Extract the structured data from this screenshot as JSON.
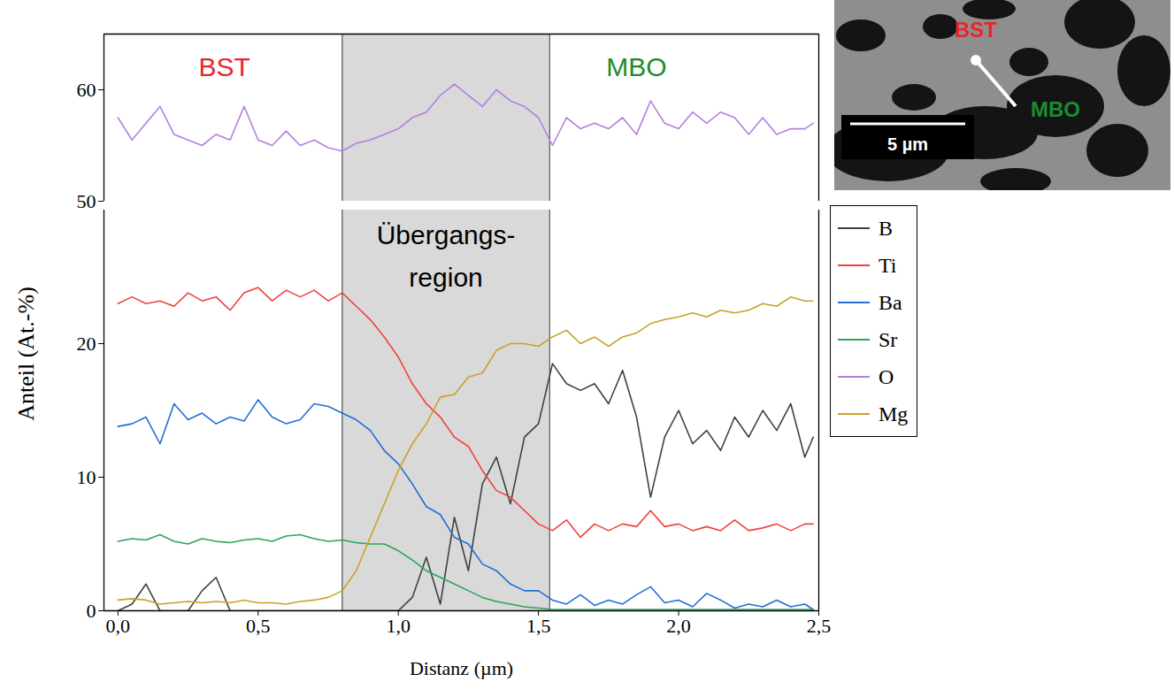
{
  "chart_data": {
    "type": "line",
    "x_label": "Distanz (µm)",
    "y_label": "Anteil (At.-%)",
    "xlim": [
      -0.05,
      2.5
    ],
    "xticks": [
      {
        "value": 0,
        "label": "0,0"
      },
      {
        "value": 0.5,
        "label": "0,5"
      },
      {
        "value": 1,
        "label": "1,0"
      },
      {
        "value": 1.5,
        "label": "1,5"
      },
      {
        "value": 2,
        "label": "2,0"
      },
      {
        "value": 2.5,
        "label": "2,5"
      }
    ],
    "ylim": [
      0,
      30
    ],
    "yticks": [
      0,
      10,
      20
    ],
    "y2lim": [
      50,
      65
    ],
    "y2ticks": [
      50,
      60
    ],
    "legend": "right",
    "x": [
      0,
      0.05,
      0.1,
      0.15,
      0.2,
      0.25,
      0.3,
      0.35,
      0.4,
      0.45,
      0.5,
      0.55,
      0.6,
      0.65,
      0.7,
      0.75,
      0.8,
      0.85,
      0.9,
      0.95,
      1.0,
      1.05,
      1.1,
      1.15,
      1.2,
      1.25,
      1.3,
      1.35,
      1.4,
      1.45,
      1.5,
      1.55,
      1.6,
      1.65,
      1.7,
      1.75,
      1.8,
      1.85,
      1.9,
      1.95,
      2.0,
      2.05,
      2.1,
      2.15,
      2.2,
      2.25,
      2.3,
      2.35,
      2.4,
      2.45,
      2.48
    ],
    "series": [
      {
        "name": "B",
        "color": "#404040",
        "values": [
          0,
          0.5,
          2.0,
          0,
          0,
          0,
          1.5,
          2.5,
          0,
          0,
          0,
          0,
          0,
          0,
          0,
          0,
          0,
          0,
          0,
          0,
          0,
          1.0,
          4.0,
          0.5,
          7.0,
          3.0,
          9.5,
          11.5,
          8.0,
          13.0,
          14.0,
          18.5,
          17.0,
          16.5,
          17.0,
          15.5,
          18.0,
          14.5,
          8.5,
          13.0,
          15.0,
          12.5,
          13.5,
          12.0,
          14.5,
          13.0,
          15.0,
          13.5,
          15.5,
          11.5,
          13.0
        ]
      },
      {
        "name": "Ti",
        "color": "#f0413c",
        "values": [
          23.0,
          23.5,
          23.0,
          23.2,
          22.8,
          23.8,
          23.2,
          23.5,
          22.5,
          23.8,
          24.2,
          23.2,
          24.0,
          23.5,
          24.0,
          23.2,
          23.8,
          22.8,
          21.8,
          20.5,
          19.0,
          17.0,
          15.5,
          14.5,
          13.0,
          12.3,
          10.5,
          9.0,
          8.5,
          7.5,
          6.5,
          6.0,
          6.8,
          5.5,
          6.5,
          6.0,
          6.5,
          6.3,
          7.5,
          6.3,
          6.5,
          6.0,
          6.3,
          6.0,
          6.8,
          6.0,
          6.2,
          6.5,
          6.0,
          6.5,
          6.5
        ]
      },
      {
        "name": "Ba",
        "color": "#1f6fd6",
        "values": [
          13.8,
          14.0,
          14.5,
          12.5,
          15.5,
          14.3,
          14.8,
          14.0,
          14.5,
          14.2,
          15.8,
          14.5,
          14.0,
          14.3,
          15.5,
          15.3,
          14.8,
          14.3,
          13.5,
          12.0,
          11.0,
          9.5,
          7.8,
          7.2,
          5.5,
          5.0,
          3.5,
          3.0,
          2.0,
          1.5,
          1.5,
          0.8,
          0.5,
          1.2,
          0.4,
          0.8,
          0.5,
          1.2,
          1.8,
          0.6,
          0.8,
          0.3,
          1.3,
          0.8,
          0.2,
          0.5,
          0.3,
          0.8,
          0.3,
          0.5,
          0.1
        ]
      },
      {
        "name": "Sr",
        "color": "#2aa55a",
        "values": [
          5.2,
          5.4,
          5.3,
          5.7,
          5.2,
          5.0,
          5.4,
          5.2,
          5.1,
          5.3,
          5.4,
          5.2,
          5.6,
          5.7,
          5.4,
          5.2,
          5.3,
          5.1,
          5.0,
          5.0,
          4.5,
          3.8,
          3.0,
          2.5,
          2.0,
          1.5,
          1.0,
          0.7,
          0.5,
          0.3,
          0.2,
          0.1,
          0.1,
          0.1,
          0.1,
          0.1,
          0.1,
          0.1,
          0.1,
          0.1,
          0.1,
          0.1,
          0.1,
          0.1,
          0.1,
          0.1,
          0.1,
          0.1,
          0.1,
          0.1,
          0.1
        ]
      },
      {
        "name": "O",
        "color": "#b57fe0",
        "axis": "y2",
        "values": [
          57.5,
          55.5,
          57.0,
          58.5,
          56.0,
          55.5,
          55.0,
          56.0,
          55.5,
          58.5,
          55.5,
          55.0,
          56.3,
          55.0,
          55.5,
          54.8,
          54.5,
          55.2,
          55.5,
          56.0,
          56.5,
          57.5,
          58.0,
          59.5,
          60.5,
          59.5,
          58.5,
          60.0,
          59.0,
          58.5,
          57.5,
          55.0,
          57.5,
          56.5,
          57.0,
          56.5,
          57.5,
          56.0,
          59.0,
          57.0,
          56.5,
          58.0,
          57.0,
          58.0,
          57.5,
          56.0,
          57.5,
          56.0,
          56.5,
          56.5,
          57.0
        ]
      },
      {
        "name": "Mg",
        "color": "#c9a227",
        "values": [
          0.8,
          0.9,
          0.8,
          0.5,
          0.6,
          0.7,
          0.6,
          0.7,
          0.6,
          0.8,
          0.6,
          0.6,
          0.5,
          0.7,
          0.8,
          1.0,
          1.5,
          3.0,
          5.5,
          8.0,
          10.5,
          12.5,
          14.0,
          16.0,
          16.2,
          17.5,
          17.8,
          19.5,
          20.0,
          20.0,
          19.8,
          20.5,
          21.0,
          20.0,
          20.5,
          19.8,
          20.5,
          20.8,
          21.5,
          21.8,
          22.0,
          22.3,
          22.0,
          22.5,
          22.3,
          22.5,
          23.0,
          22.8,
          23.5,
          23.2,
          23.2
        ]
      }
    ],
    "shaded_region": {
      "x": [
        0.8,
        1.54
      ],
      "color": "#d9d9d9",
      "label": [
        "Übergangs-",
        "region"
      ]
    },
    "annotations": [
      {
        "text": "BST",
        "x": 0.38,
        "y": 62,
        "axis": "y2",
        "color": "#e8262b"
      },
      {
        "text": "MBO",
        "x": 1.85,
        "y": 62,
        "axis": "y2",
        "color": "#1a8c2e"
      }
    ],
    "inset": {
      "labels": [
        {
          "text": "BST",
          "color": "#e8262b"
        },
        {
          "text": "MBO",
          "color": "#1a8c2e"
        }
      ],
      "scale_bar": "5 µm"
    }
  }
}
